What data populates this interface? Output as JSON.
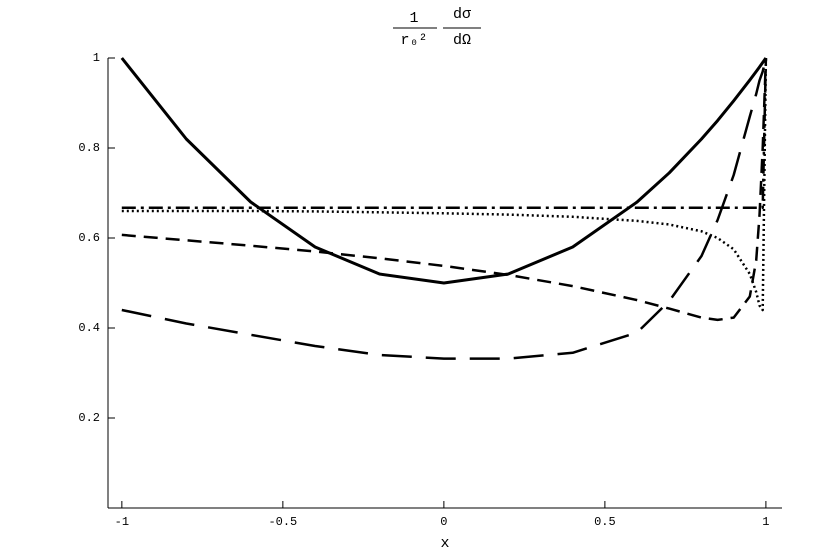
{
  "chart_data": {
    "type": "line",
    "y_label_fractions": [
      [
        "1",
        "r₀²"
      ],
      [
        "dσ",
        "dΩ"
      ]
    ],
    "x_label": "x",
    "x": [
      -1,
      -0.8,
      -0.6,
      -0.4,
      -0.2,
      0,
      0.2,
      0.4,
      0.6,
      0.7,
      0.8,
      0.85,
      0.9,
      0.95,
      0.97,
      0.98,
      0.99,
      1
    ],
    "series": [
      {
        "color": "#000000",
        "dash": "none",
        "width": 3,
        "values": [
          1,
          0.82,
          0.68,
          0.58,
          0.52,
          0.5,
          0.52,
          0.58,
          0.68,
          0.745,
          0.82,
          0.861,
          0.905,
          0.951,
          0.97,
          0.98,
          0.99,
          1
        ]
      },
      {
        "color": "#000000",
        "dash": "14 5 3 5",
        "width": 2.5,
        "values": [
          0.667,
          0.667,
          0.667,
          0.667,
          0.667,
          0.667,
          0.667,
          0.667,
          0.667,
          0.667,
          0.667,
          0.667,
          0.667,
          0.667,
          0.667,
          0.667,
          0.667,
          1
        ]
      },
      {
        "color": "#000000",
        "dash": "2 3",
        "width": 2.5,
        "values": [
          0.66,
          0.66,
          0.66,
          0.659,
          0.657,
          0.655,
          0.652,
          0.647,
          0.638,
          0.63,
          0.615,
          0.6,
          0.575,
          0.52,
          0.48,
          0.45,
          0.44,
          1
        ]
      },
      {
        "color": "#000000",
        "dash": "14 8",
        "width": 2.5,
        "values": [
          0.607,
          0.595,
          0.583,
          0.57,
          0.555,
          0.538,
          0.518,
          0.493,
          0.462,
          0.443,
          0.423,
          0.418,
          0.423,
          0.47,
          0.55,
          0.65,
          0.8,
          1
        ]
      },
      {
        "color": "#000000",
        "dash": "30 14",
        "width": 2.5,
        "values": [
          0.44,
          0.41,
          0.385,
          0.36,
          0.34,
          0.332,
          0.332,
          0.345,
          0.39,
          0.46,
          0.56,
          0.64,
          0.74,
          0.87,
          0.92,
          0.95,
          0.97,
          1
        ]
      }
    ],
    "xlim": [
      -1.043,
      1.05
    ],
    "ylim": [
      0,
      1
    ],
    "xticks": [
      -1,
      -0.5,
      0,
      0.5,
      1
    ],
    "yticks": [
      0.2,
      0.4,
      0.6,
      0.8,
      1
    ]
  }
}
